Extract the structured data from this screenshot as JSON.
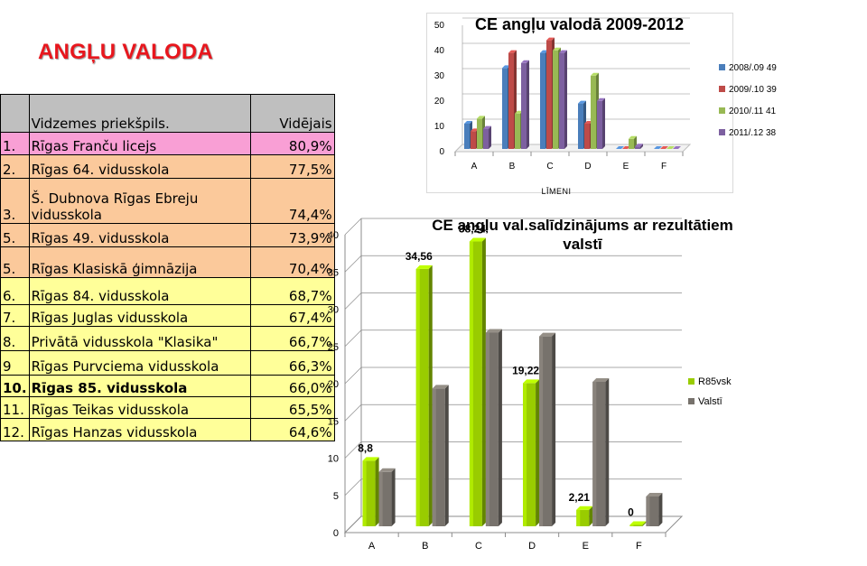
{
  "heading": "ANGĻU VALODA",
  "table": {
    "headers": [
      "",
      "Vidzemes priekšpils.",
      "Vidējais"
    ],
    "rows": [
      {
        "num": "1.",
        "school": "Rīgas Franču licejs",
        "avg": "80,9%",
        "group": "pink"
      },
      {
        "num": "2.",
        "school": "Rīgas 64. vidusskola",
        "avg": "77,5%",
        "group": "orange"
      },
      {
        "num": "3.",
        "school": "Š. Dubnova Rīgas Ebreju vidusskola",
        "avg": "74,4%",
        "group": "orange"
      },
      {
        "num": "5.",
        "school": "Rīgas 49. vidusskola",
        "avg": "73,9%",
        "group": "orange"
      },
      {
        "num": "5.",
        "school": "Rīgas Klasiskā ģimnāzija",
        "avg": "70,4%",
        "group": "orange"
      },
      {
        "num": "6.",
        "school": "Rīgas 84. vidusskola",
        "avg": "68,7%",
        "group": "yellow"
      },
      {
        "num": "7.",
        "school": "Rīgas Juglas vidusskola",
        "avg": "67,4%",
        "group": "yellow"
      },
      {
        "num": "8.",
        "school": "Privātā vidusskola \"Klasika\"",
        "avg": "66,7%",
        "group": "yellow"
      },
      {
        "num": "9",
        "school": "Rīgas Purvciema vidusskola",
        "avg": "66,3%",
        "group": "yellow"
      },
      {
        "num": "10.",
        "school": "Rīgas 85. vidusskola",
        "avg": "66,0%",
        "group": "yellow",
        "bold": true
      },
      {
        "num": "11.",
        "school": "Rīgas Teikas vidusskola",
        "avg": "65,5%",
        "group": "yellow"
      },
      {
        "num": "12.",
        "school": "Rīgas Hanzas vidusskola",
        "avg": "64,6%",
        "group": "yellow"
      }
    ]
  },
  "chart_data": [
    {
      "type": "bar",
      "title": "CE angļu valodā 2009-2012",
      "xlabel": "LĪMENI",
      "ylabel": "",
      "categories": [
        "A",
        "B",
        "C",
        "D",
        "E",
        "F"
      ],
      "ylim": [
        0,
        50
      ],
      "yticks": [
        0,
        10,
        20,
        30,
        40,
        50
      ],
      "grid": true,
      "legend_position": "right",
      "series": [
        {
          "name": "2008/.09 49",
          "color": "#4a7ebb",
          "values": [
            10,
            32,
            38,
            18,
            0,
            0
          ]
        },
        {
          "name": "2009/.10 39",
          "color": "#be4b48",
          "values": [
            7,
            38,
            43,
            10,
            0,
            0
          ]
        },
        {
          "name": "2010/.11 41",
          "color": "#98b954",
          "values": [
            12,
            14,
            39,
            29,
            4,
            0
          ]
        },
        {
          "name": "2011/.12 38",
          "color": "#7d60a0",
          "values": [
            8,
            34,
            38,
            19,
            1,
            0
          ]
        }
      ]
    },
    {
      "type": "bar",
      "title": "CE angļu val.salīdzinājums ar rezultātiem valstī",
      "xlabel": "",
      "ylabel": "",
      "categories": [
        "A",
        "B",
        "C",
        "D",
        "E",
        "F"
      ],
      "ylim": [
        0,
        40
      ],
      "yticks": [
        0,
        5,
        10,
        15,
        20,
        25,
        30,
        35,
        40
      ],
      "ytick_labels": [
        "0",
        "5",
        "10",
        "15",
        "20",
        "25",
        "30",
        "35",
        "40"
      ],
      "grid": true,
      "legend_position": "right",
      "series": [
        {
          "name": "R85vsk",
          "color": "#99cc00",
          "values": [
            8.8,
            34.56,
            38.24,
            19.22,
            2.21,
            0
          ],
          "labels": [
            "8,8",
            "34,56",
            "38,24",
            "19,22",
            "2,21",
            "0"
          ]
        },
        {
          "name": "Valstī",
          "color": "#77726c",
          "values": [
            7.3,
            18.5,
            26.0,
            25.5,
            19.4,
            4.0
          ]
        }
      ]
    }
  ]
}
